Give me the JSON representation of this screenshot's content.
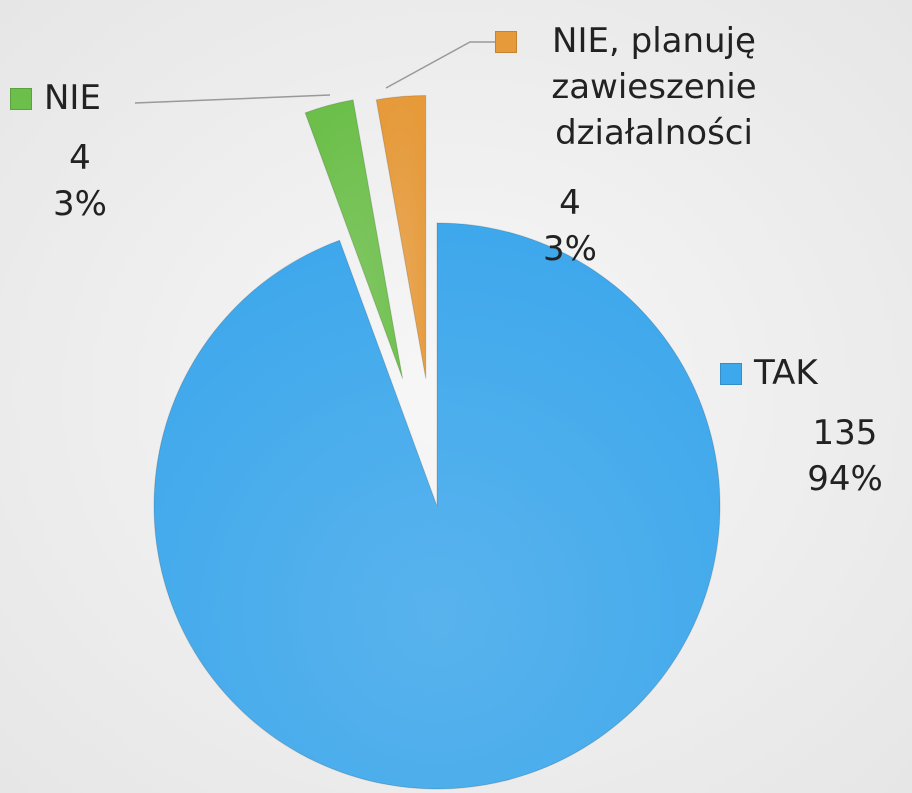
{
  "chart_data": {
    "type": "pie",
    "categories": [
      "TAK",
      "NIE",
      "NIE, planuję zawieszenie działalności"
    ],
    "values": [
      135,
      4,
      4
    ],
    "percent_labels": [
      "94%",
      "3%",
      "3%"
    ],
    "colors": [
      "#3ea8ec",
      "#6cbf4a",
      "#e69a3a"
    ]
  }
}
